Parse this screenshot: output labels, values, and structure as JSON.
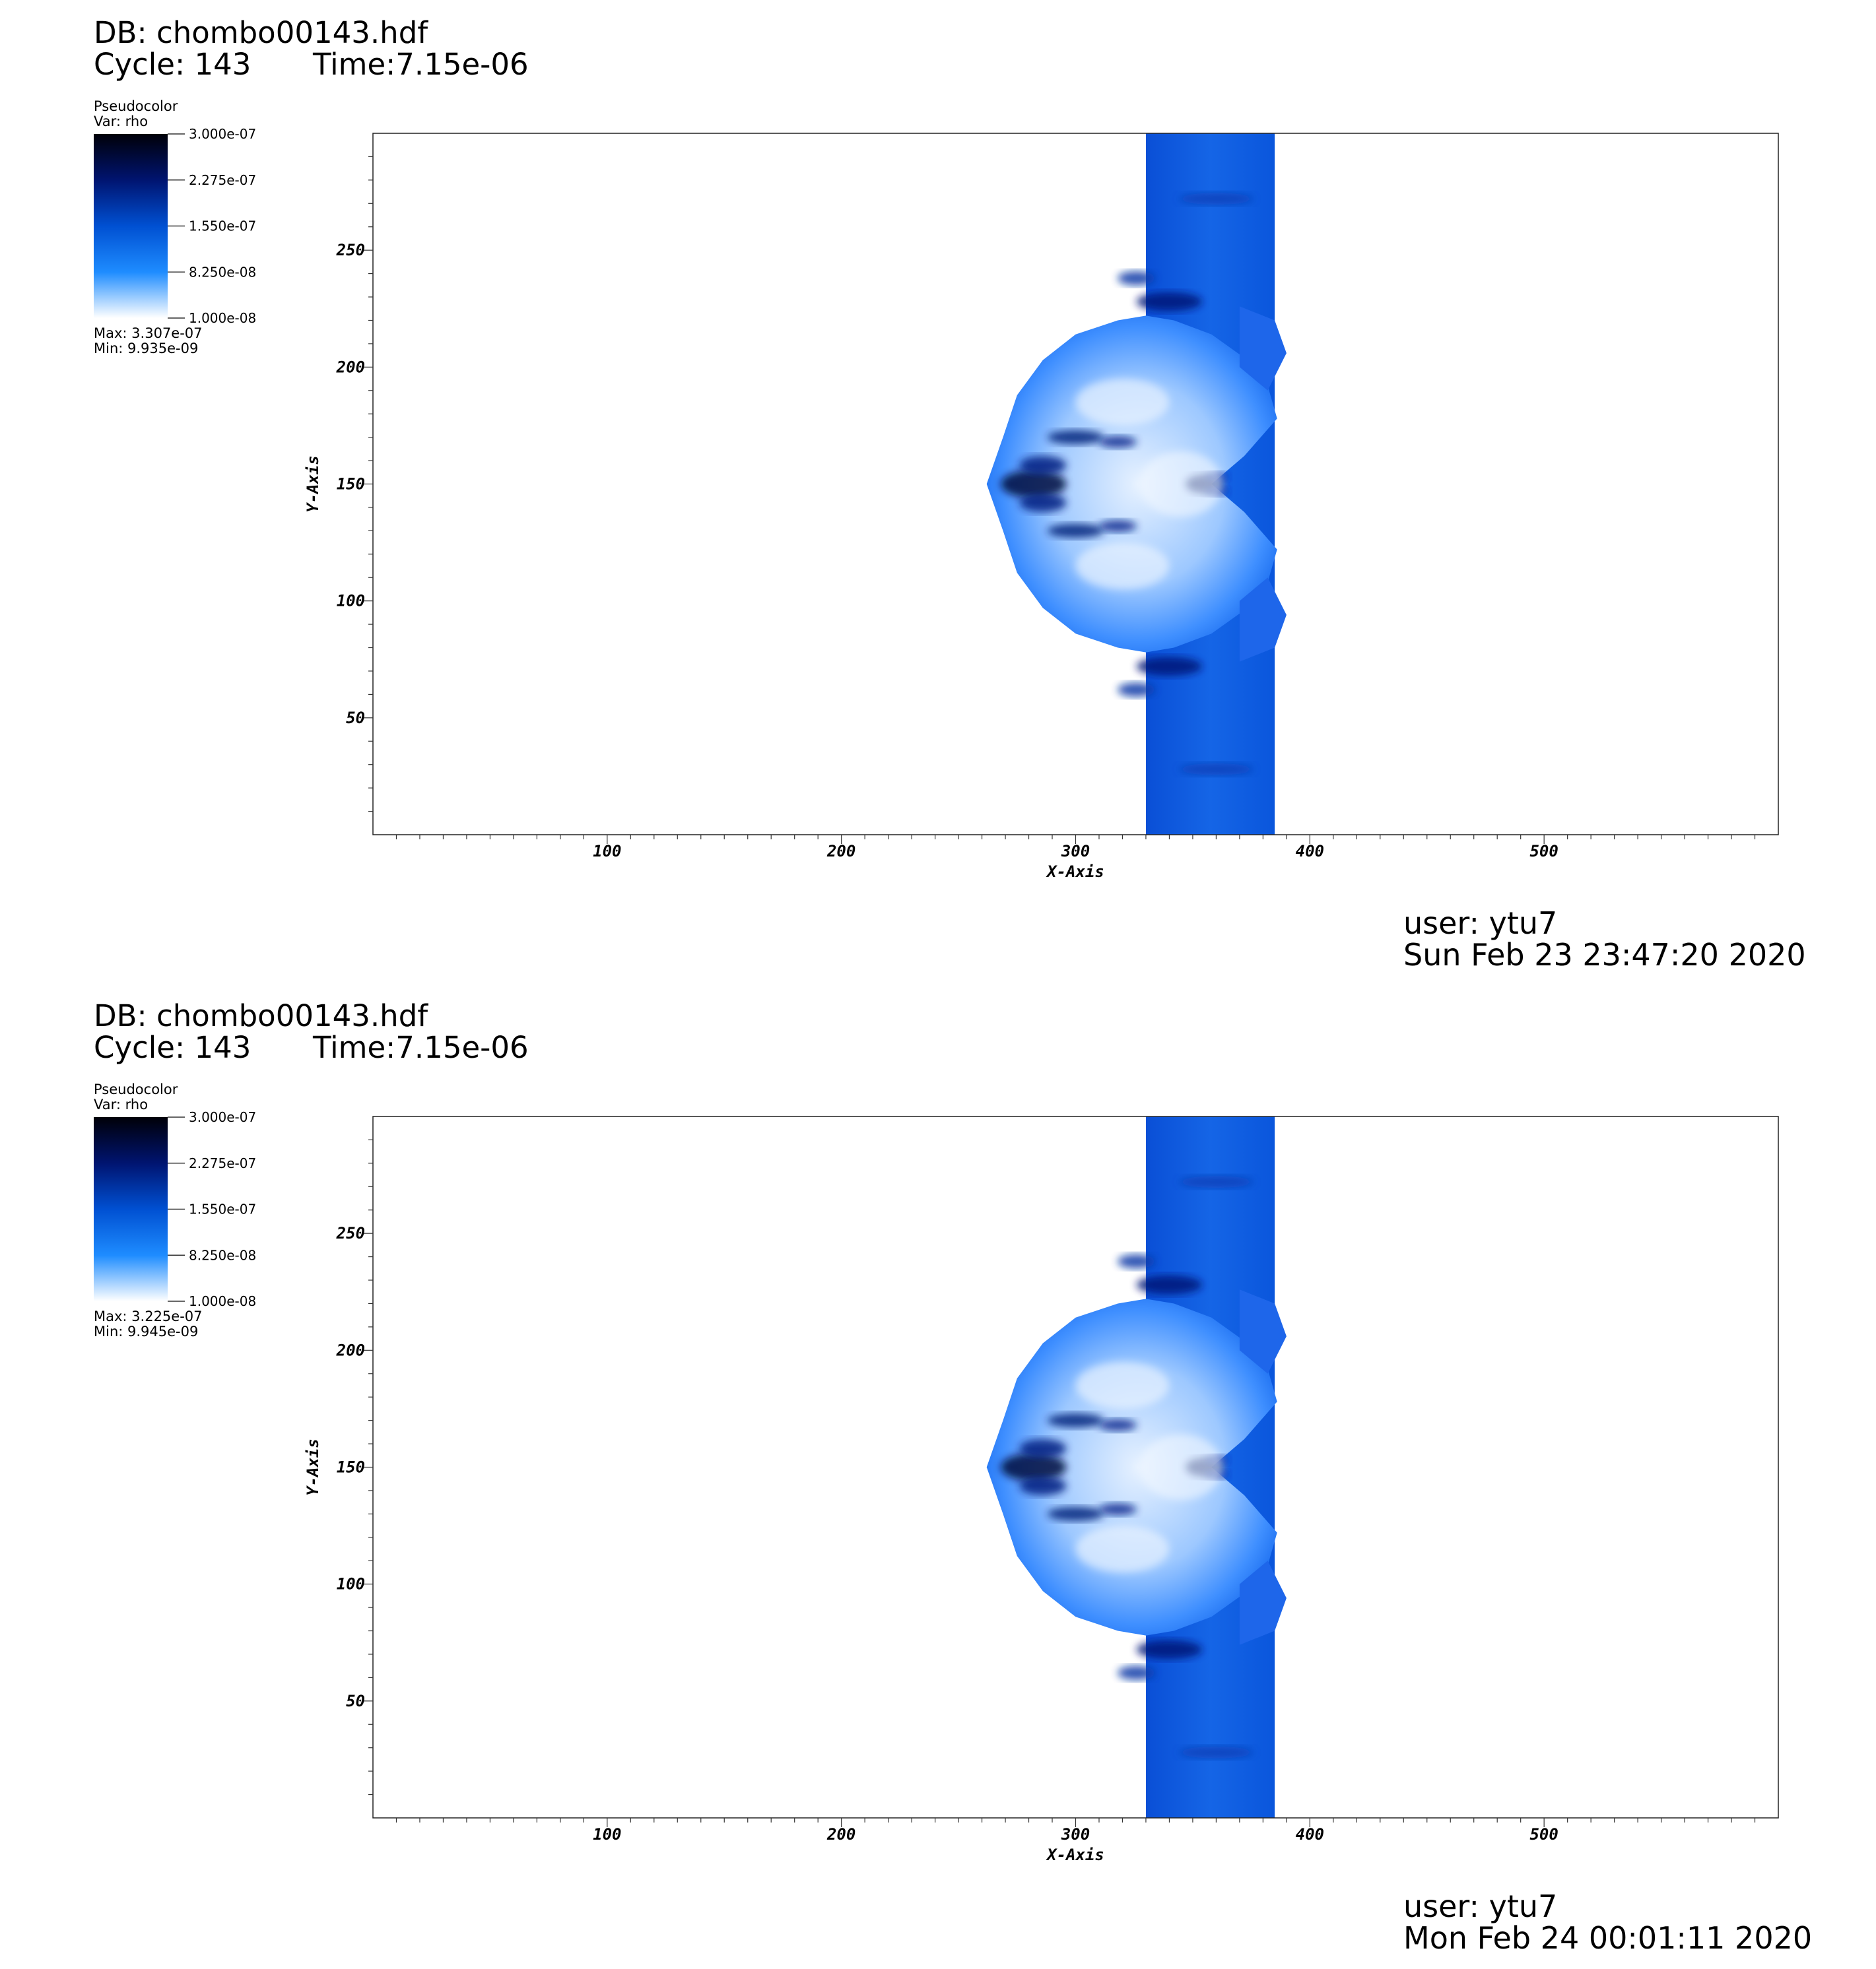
{
  "panels": [
    {
      "db_label": "DB: chombo00143.hdf",
      "cycle_label": "Cycle: 143",
      "time_label": "Time:7.15e-06",
      "legend": {
        "plot_type": "Pseudocolor",
        "var_label": "Var: rho",
        "ticks": [
          "3.000e-07",
          "2.275e-07",
          "1.550e-07",
          "8.250e-08",
          "1.000e-08"
        ],
        "max_label": "Max:  3.307e-07",
        "min_label": "Min:  9.935e-09"
      },
      "user_label": "user: ytu7",
      "date_label": "Sun Feb 23 23:47:20 2020"
    },
    {
      "db_label": "DB: chombo00143.hdf",
      "cycle_label": "Cycle: 143",
      "time_label": "Time:7.15e-06",
      "legend": {
        "plot_type": "Pseudocolor",
        "var_label": "Var: rho",
        "ticks": [
          "3.000e-07",
          "2.275e-07",
          "1.550e-07",
          "8.250e-08",
          "1.000e-08"
        ],
        "max_label": "Max:  3.225e-07",
        "min_label": "Min:  9.945e-09"
      },
      "user_label": "user: ytu7",
      "date_label": "Mon Feb 24 00:01:11 2020"
    }
  ],
  "colors": {
    "colormap": [
      "#ffffff",
      "#1e8cff",
      "#0050d2",
      "#001470",
      "#000008"
    ],
    "background_band": "#0a4fd6"
  },
  "chart_data": [
    {
      "type": "heatmap",
      "xlabel": "X-Axis",
      "ylabel": "Y-Axis",
      "xlim": [
        0,
        600
      ],
      "ylim": [
        0,
        300
      ],
      "xticks": [
        100,
        200,
        300,
        400,
        500
      ],
      "yticks": [
        50,
        100,
        150,
        200,
        250
      ],
      "variable": "rho",
      "color_range": [
        1e-08,
        3e-07
      ]
    },
    {
      "type": "heatmap",
      "xlabel": "X-Axis",
      "ylabel": "Y-Axis",
      "xlim": [
        0,
        600
      ],
      "ylim": [
        0,
        300
      ],
      "xticks": [
        100,
        200,
        300,
        400,
        500
      ],
      "yticks": [
        50,
        100,
        150,
        200,
        250
      ],
      "variable": "rho",
      "color_range": [
        1e-08,
        3e-07
      ]
    }
  ]
}
